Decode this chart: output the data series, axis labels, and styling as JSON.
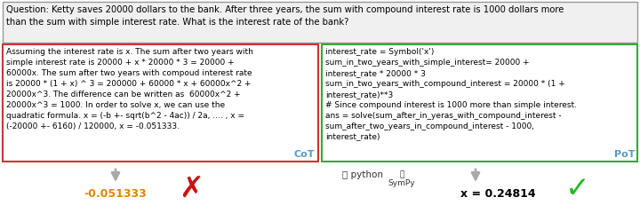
{
  "question_text": "Question: Ketty saves 20000 dollars to the bank. After three years, the sum with compound interest rate is 1000 dollars more\nthan the sum with simple interest rate. What is the interest rate of the bank?",
  "cot_text": "Assuming the interest rate is x. The sum after two years with\nsimple interest rate is 20000 + x * 20000 * 3 = 20000 +\n60000x. The sum after two years with compoud interest rate\nis 20000 * (1 + x) ^ 3 = 200000 + 60000 * x + 60000x^2 +\n20000x^3. The difference can be written as  60000x^2 +\n20000x^3 = 1000. In order to solve x, we can use the\nquadratic formula. x = (-b +- sqrt(b^2 - 4ac)) / 2a, .... , x =\n(-20000 +- 6160) / 120000, x = -0.051333.",
  "pot_text": "interest_rate = Symbol('x')\nsum_in_two_years_with_simple_interest= 20000 +\ninterest_rate * 20000 * 3\nsum_in_two_years_with_compound_interest = 20000 * (1 +\ninterest_rate)**3\n# Since compound interest is 1000 more than simple interest.\nans = solve(sum_after_in_yeras_with_compound_interest -\nsum_after_two_years_in_compound_interest - 1000,\ninterest_rate)",
  "cot_label": "CoT",
  "pot_label": "PoT",
  "cot_result": "-0.051333",
  "pot_result": "x = 0.24814",
  "question_box_facecolor": "#f0f0f0",
  "question_border_color": "#999999",
  "cot_box_border_color": "#cc3333",
  "pot_box_border_color": "#33aa33",
  "cot_result_color": "#dd8800",
  "pot_result_color": "#000000",
  "label_color": "#5599cc",
  "background_color": "#ffffff",
  "arrow_color": "#aaaaaa",
  "cross_color": "#cc1111",
  "check_color": "#22bb22",
  "fig_width": 7.2,
  "fig_height": 2.4,
  "dpi": 100
}
